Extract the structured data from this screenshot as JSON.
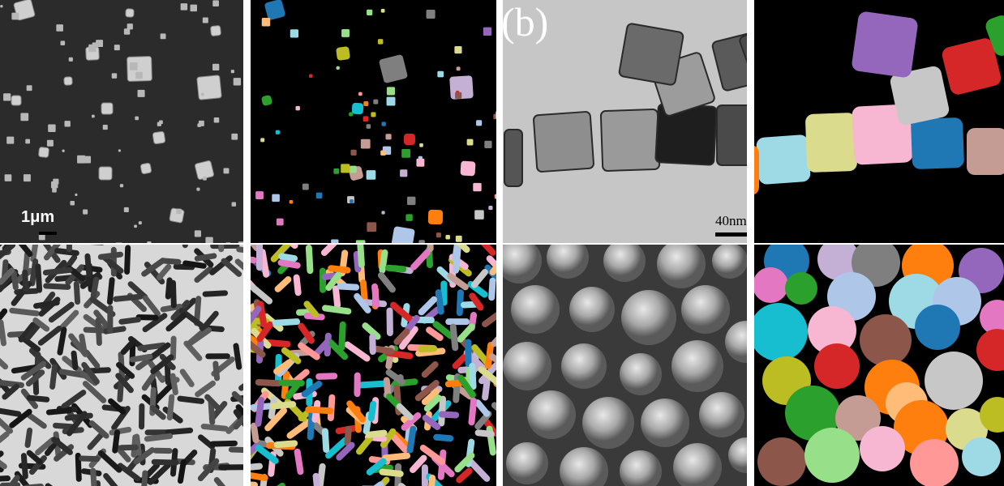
{
  "panels": [
    {
      "id": "a1",
      "kind": "sem-cubes",
      "scale_label": "1μm"
    },
    {
      "id": "a2",
      "kind": "mask-cubes"
    },
    {
      "id": "b1",
      "kind": "tem-chain",
      "panel_letter": "(b)",
      "scale_label": "40nm"
    },
    {
      "id": "b2",
      "kind": "mask-chain"
    },
    {
      "id": "c1",
      "kind": "tem-rods"
    },
    {
      "id": "c2",
      "kind": "mask-rods"
    },
    {
      "id": "d1",
      "kind": "sem-spheres"
    },
    {
      "id": "d2",
      "kind": "mask-spheres"
    }
  ],
  "colors": {
    "palette": [
      "#1f77b4",
      "#ff7f0e",
      "#2ca02c",
      "#d62728",
      "#9467bd",
      "#8c564b",
      "#e377c2",
      "#7f7f7f",
      "#bcbd22",
      "#17becf",
      "#aec7e8",
      "#ffbb78",
      "#98df8a",
      "#ff9896",
      "#c5b0d5",
      "#c49c94",
      "#f7b6d2",
      "#c7c7c7",
      "#dbdb8d",
      "#9edae5"
    ],
    "mask_background": "#000000",
    "divider": "#ffffff"
  }
}
